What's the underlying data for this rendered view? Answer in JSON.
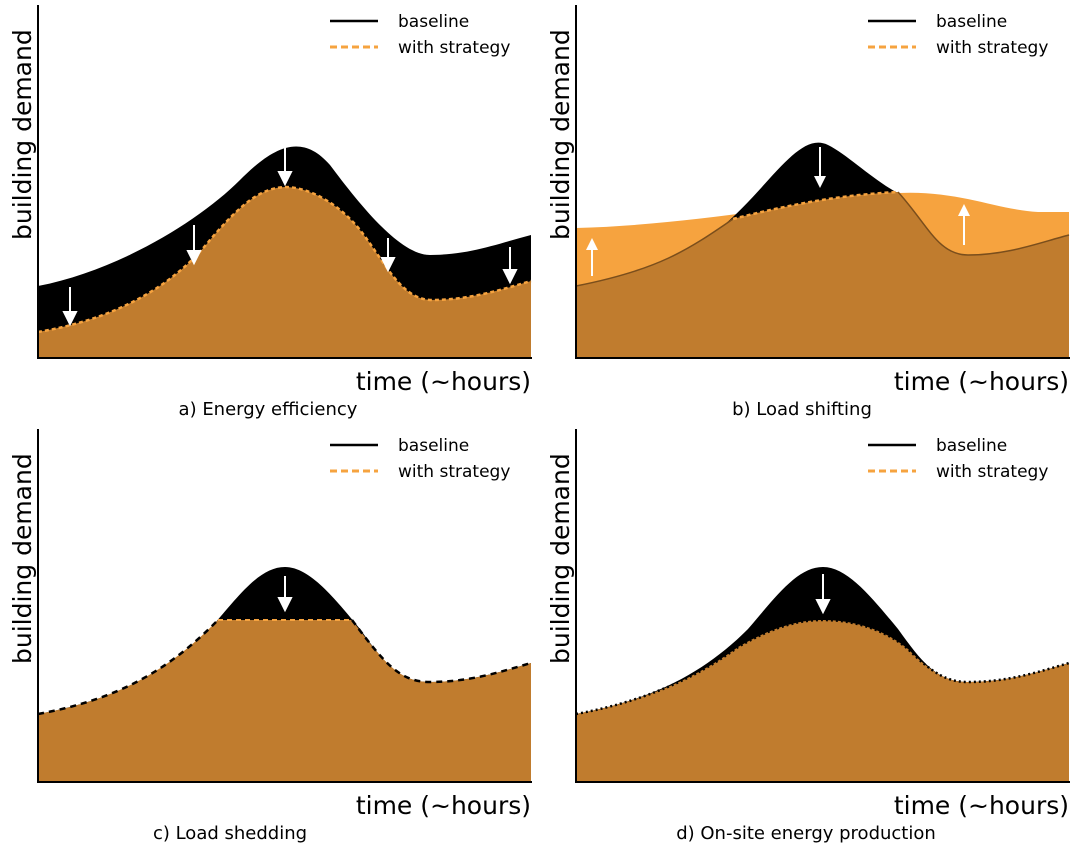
{
  "figure": {
    "colors": {
      "baseline_fill": "#000000",
      "strategy_fill": "#c07c2e",
      "strategy_line": "#f6a33f",
      "shift_fill": "#f6a33f",
      "arrow_light": "#ffffff"
    },
    "legend": {
      "baseline": "baseline",
      "with_strategy": "with strategy"
    },
    "axis_labels": {
      "y": "building demand",
      "x": "time (~hours)"
    }
  },
  "panels": [
    {
      "id": "a",
      "caption": "a) Energy efficiency"
    },
    {
      "id": "b",
      "caption": "b) Load shifting"
    },
    {
      "id": "c",
      "caption": "c) Load shedding"
    },
    {
      "id": "d",
      "caption": "d) On-site energy production"
    }
  ]
}
